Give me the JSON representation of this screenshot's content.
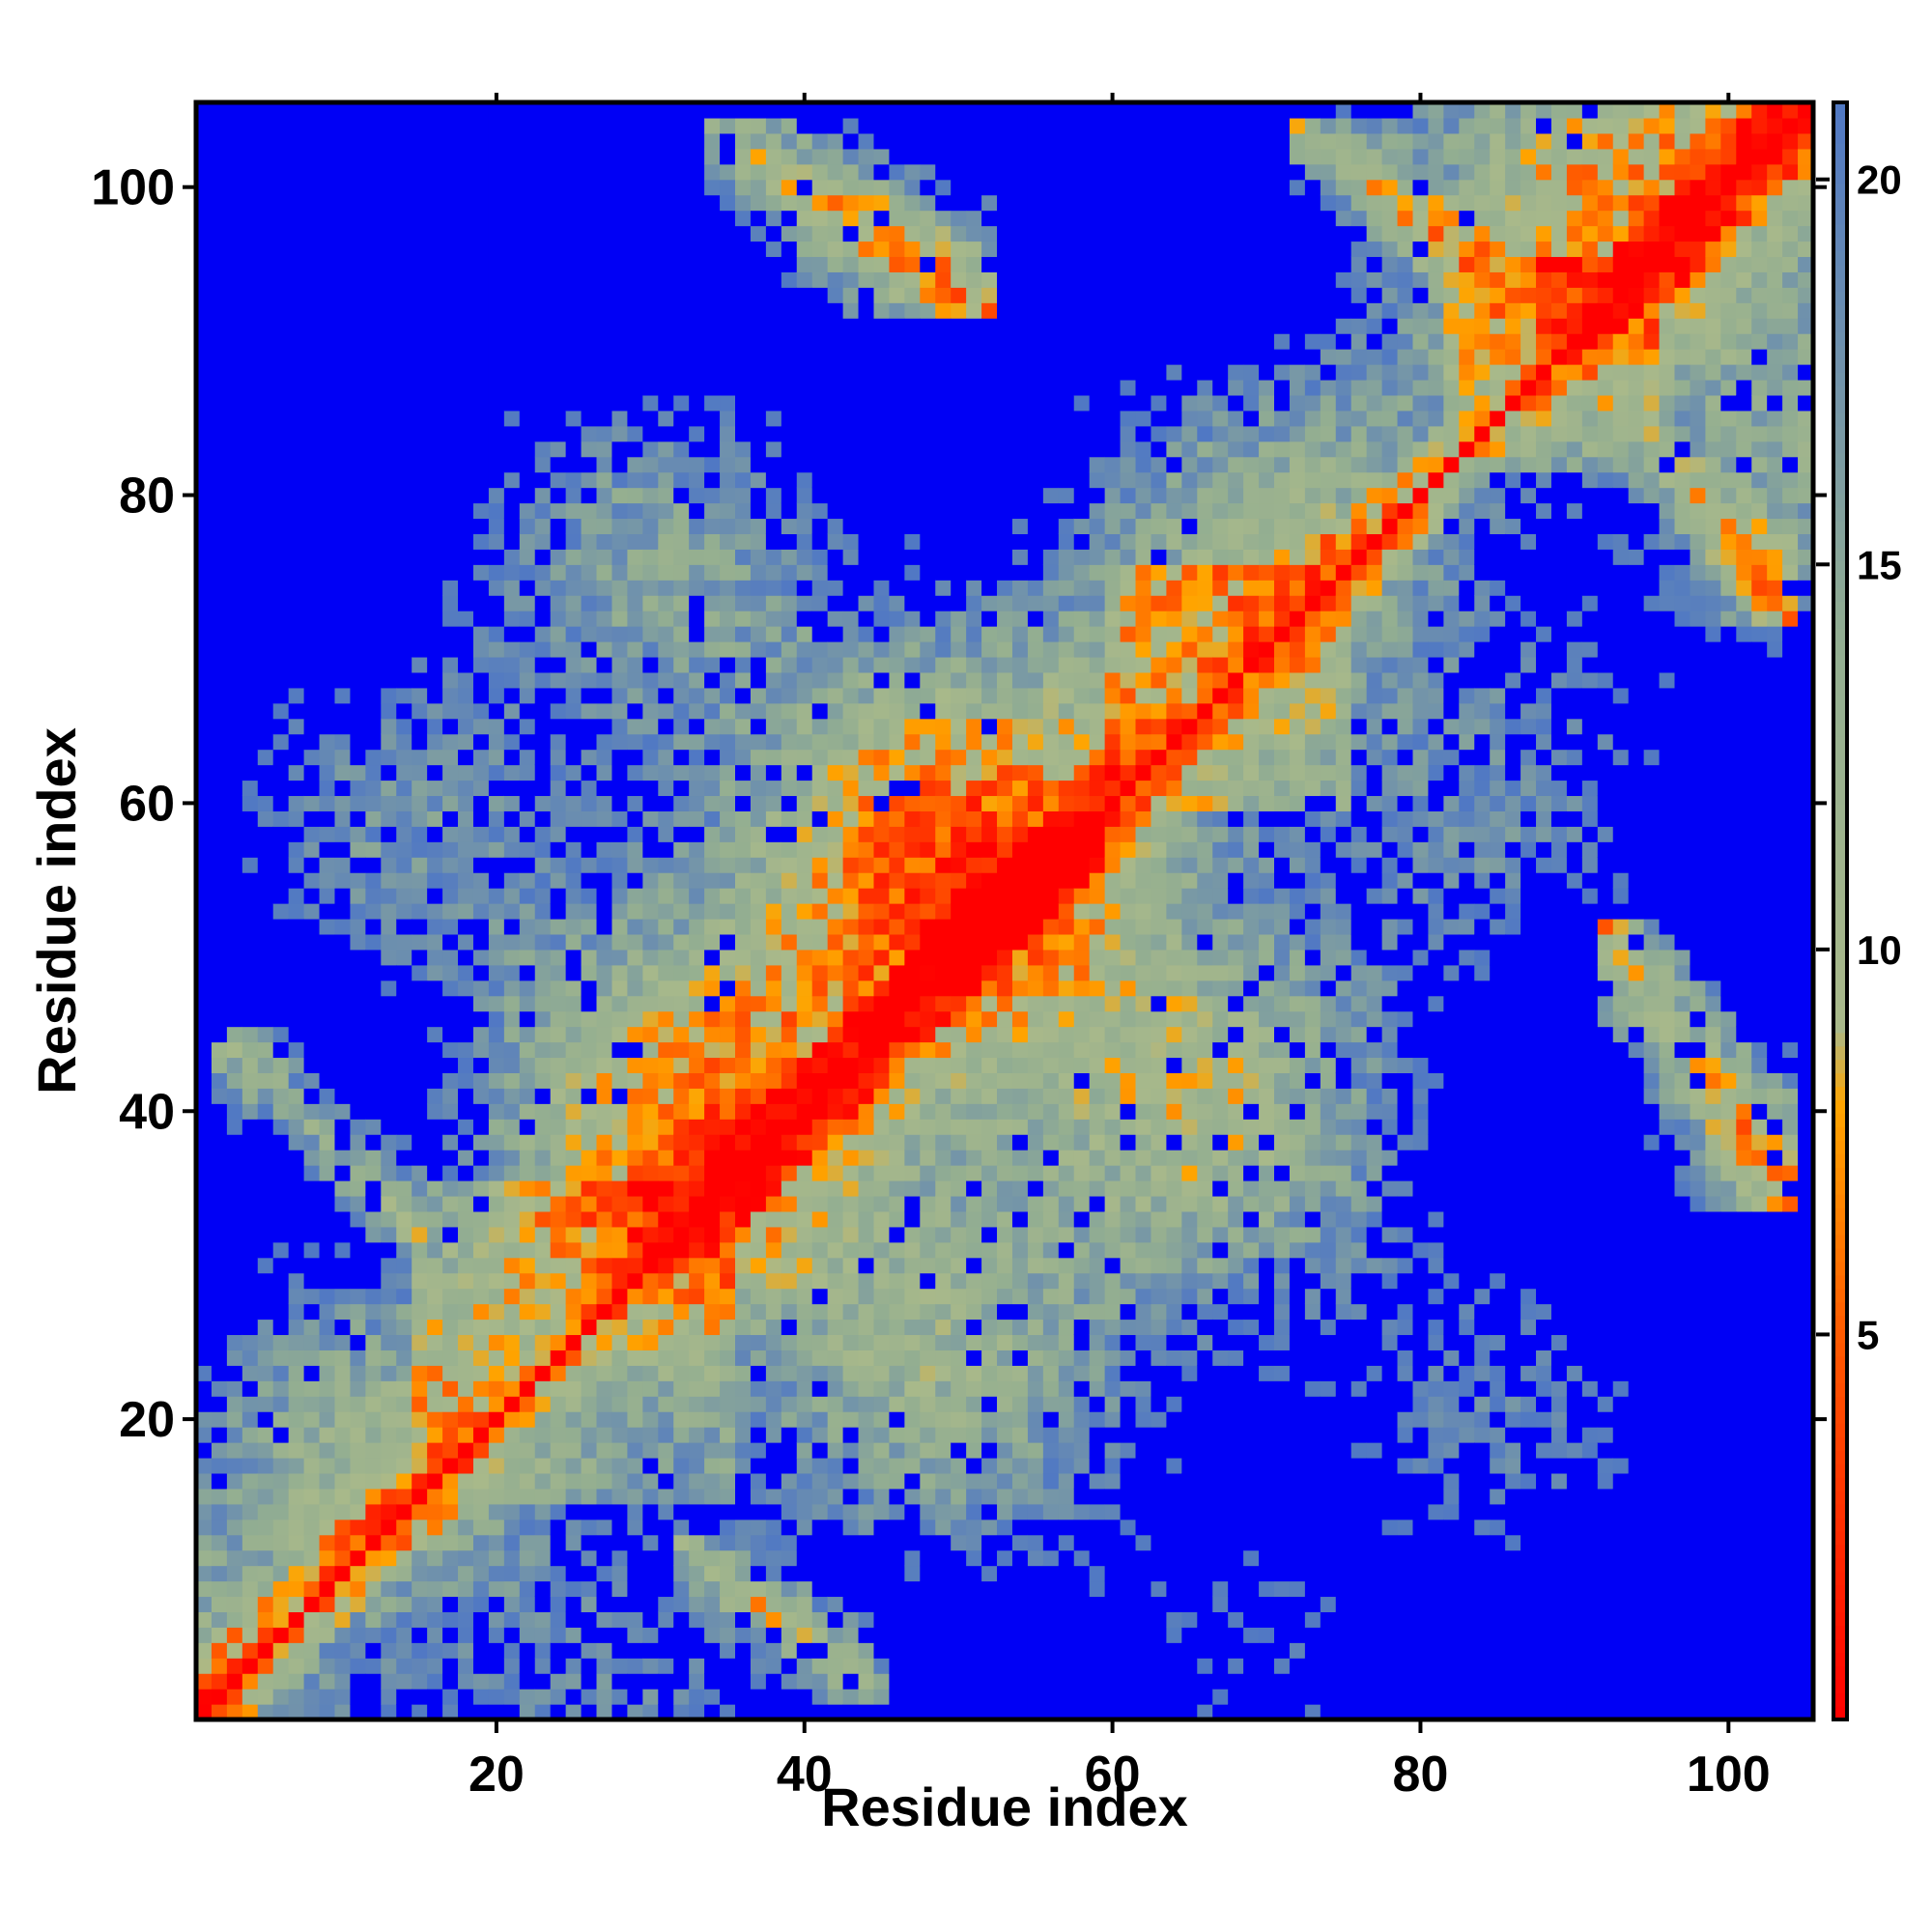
{
  "chart_data": {
    "type": "heatmap",
    "title": "",
    "xlabel": "Residue index",
    "ylabel": "Residue index",
    "xlim": [
      1,
      105
    ],
    "ylim": [
      1,
      105
    ],
    "x_ticks": [
      20,
      40,
      60,
      80,
      100
    ],
    "y_ticks": [
      20,
      40,
      60,
      80,
      100
    ],
    "colorbar": {
      "range": [
        0,
        21
      ],
      "ticks": [
        5,
        10,
        15,
        20
      ],
      "cutoff": 21,
      "stops": [
        {
          "value": 0,
          "color": "#ff0000"
        },
        {
          "value": 5,
          "color": "#ff5a00"
        },
        {
          "value": 8,
          "color": "#ffa500"
        },
        {
          "value": 9,
          "color": "#a9b98a"
        },
        {
          "value": 14,
          "color": "#93ae91"
        },
        {
          "value": 21,
          "color": "#5078c4"
        },
        {
          "value": 21.01,
          "color": "#0000f5"
        }
      ]
    },
    "description_of_values": "Pairwise residue distance map (symmetric); diagonal ~0 (red), near contacts 5-9 (orange), mid-range 9-21 (greenish to grey-blue), beyond 21 shown blue",
    "features": {
      "diagonal": {
        "from": [
          1,
          1
        ],
        "to": [
          105,
          105
        ],
        "value": 0
      },
      "helix_band_near_diagonal": [
        [
          15,
          35
        ],
        [
          60,
          75
        ],
        [
          82,
          95
        ]
      ],
      "antidiagonal_contacts": [
        {
          "x": [
            32,
            45
          ],
          "y": [
            2,
            12
          ]
        },
        {
          "x": [
            2,
            15
          ],
          "y": [
            32,
            45
          ]
        },
        {
          "x": [
            34,
            52
          ],
          "y": [
            92,
            104
          ]
        },
        {
          "x": [
            72,
            87
          ],
          "y": [
            92,
            104
          ]
        },
        {
          "x": [
            92,
            104
          ],
          "y": [
            34,
            52
          ]
        },
        {
          "x": [
            92,
            104
          ],
          "y": [
            72,
            87
          ]
        }
      ]
    }
  }
}
